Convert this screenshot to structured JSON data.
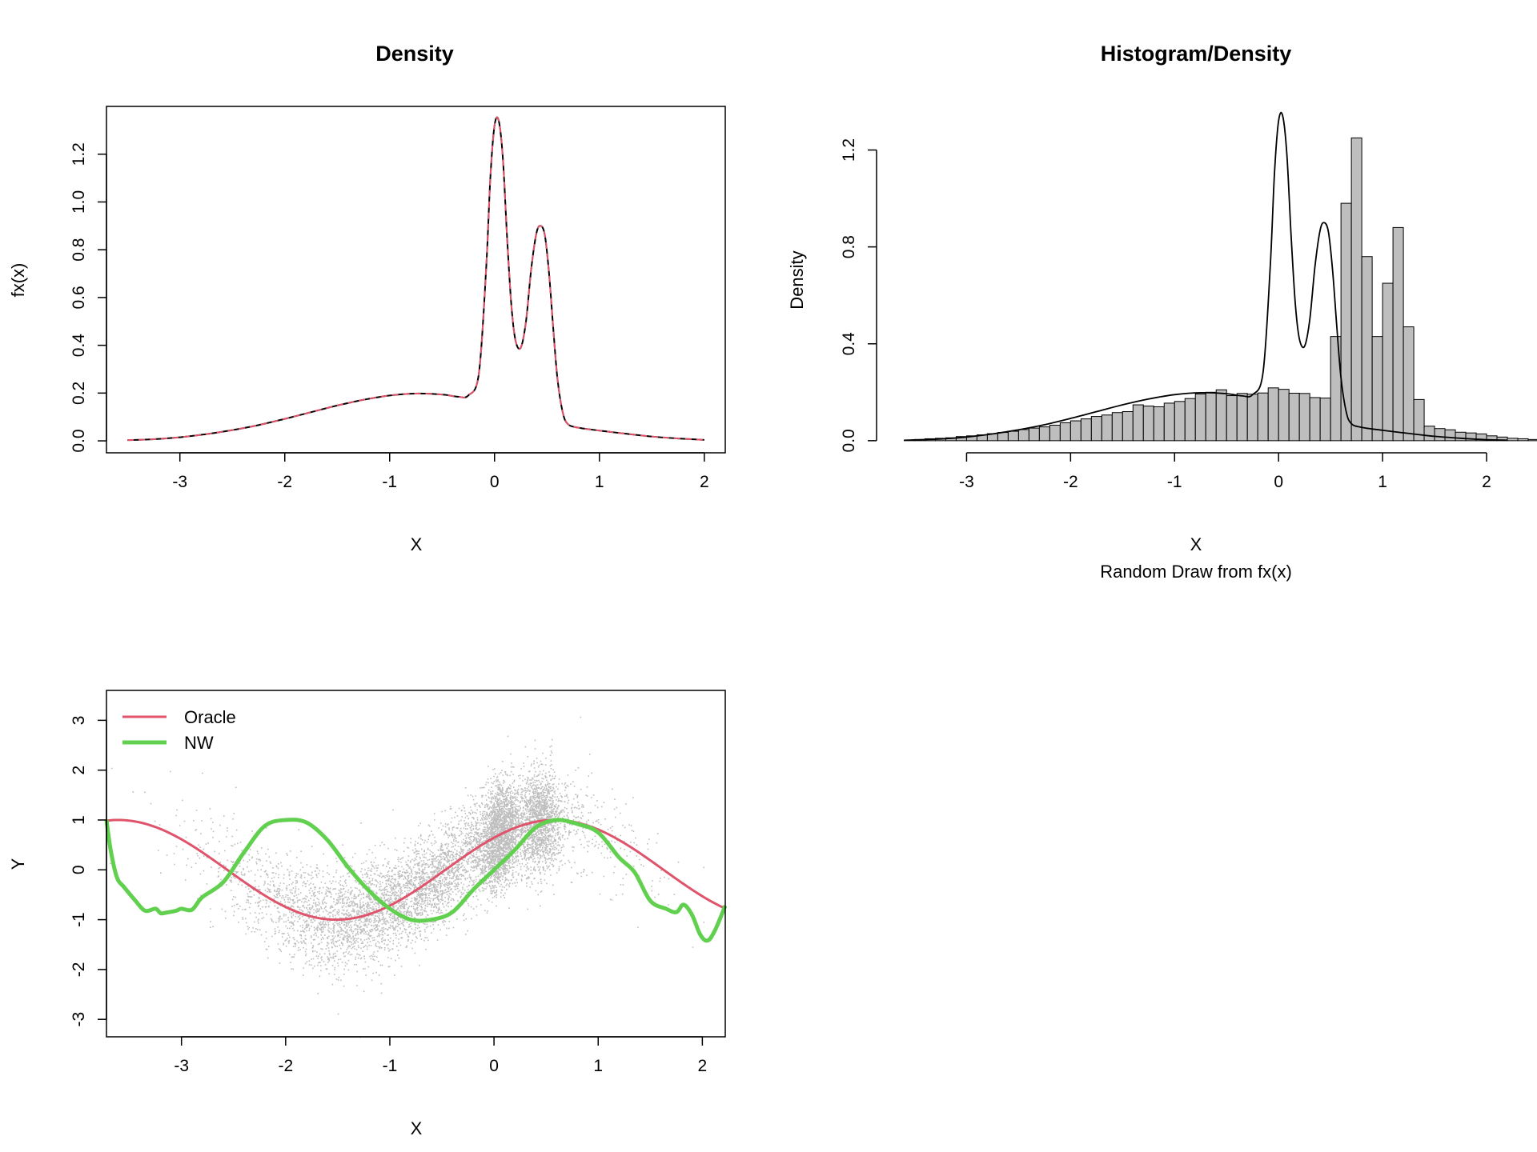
{
  "chart_data": [
    {
      "type": "line",
      "title": "Density",
      "xlabel": "X",
      "ylabel": "fx(x)",
      "xlim": [
        -3.7,
        2.2
      ],
      "ylim": [
        -0.05,
        1.4
      ],
      "xticks": [
        "-3",
        "-2",
        "-1",
        "0",
        "1",
        "2"
      ],
      "yticks": [
        "0.0",
        "0.2",
        "0.4",
        "0.6",
        "0.8",
        "1.0",
        "1.2"
      ],
      "x": [
        -3.5,
        -3.25,
        -3.0,
        -2.75,
        -2.5,
        -2.25,
        -2.0,
        -1.75,
        -1.5,
        -1.25,
        -1.0,
        -0.75,
        -0.5,
        -0.35,
        -0.25,
        -0.15,
        -0.08,
        -0.04,
        0.0,
        0.04,
        0.08,
        0.12,
        0.16,
        0.2,
        0.25,
        0.3,
        0.35,
        0.4,
        0.44,
        0.48,
        0.52,
        0.56,
        0.6,
        0.65,
        0.7,
        0.8,
        1.0,
        1.25,
        1.5,
        1.75,
        2.0
      ],
      "series": [
        {
          "color": "#000000",
          "dash": "solid",
          "values": [
            0.003,
            0.007,
            0.015,
            0.028,
            0.045,
            0.066,
            0.092,
            0.12,
            0.148,
            0.172,
            0.19,
            0.198,
            0.194,
            0.185,
            0.19,
            0.28,
            0.72,
            1.1,
            1.32,
            1.34,
            1.18,
            0.85,
            0.57,
            0.42,
            0.39,
            0.5,
            0.72,
            0.87,
            0.9,
            0.86,
            0.7,
            0.47,
            0.26,
            0.12,
            0.07,
            0.055,
            0.043,
            0.03,
            0.018,
            0.01,
            0.004
          ]
        },
        {
          "color": "#df536b",
          "dash": "dashed",
          "values": [
            0.003,
            0.007,
            0.015,
            0.028,
            0.045,
            0.066,
            0.092,
            0.12,
            0.148,
            0.172,
            0.19,
            0.198,
            0.194,
            0.185,
            0.19,
            0.28,
            0.72,
            1.1,
            1.32,
            1.34,
            1.18,
            0.85,
            0.57,
            0.42,
            0.39,
            0.5,
            0.72,
            0.87,
            0.9,
            0.86,
            0.7,
            0.47,
            0.26,
            0.12,
            0.07,
            0.055,
            0.043,
            0.03,
            0.018,
            0.01,
            0.004
          ]
        }
      ]
    },
    {
      "type": "bar",
      "title": "Histogram/Density",
      "xlabel": "X",
      "subtitle": "Random Draw from fx(x)",
      "ylabel": "Density",
      "xlim": [
        -3.75,
        2.2
      ],
      "ylim": [
        -0.05,
        1.38
      ],
      "xticks": [
        "-3",
        "-2",
        "-1",
        "0",
        "1",
        "2"
      ],
      "yticks": [
        "0.0",
        "0.4",
        "0.8",
        "1.2"
      ],
      "bin_start": -3.6,
      "bin_width": 0.1,
      "values": [
        0.002,
        0.005,
        0.008,
        0.01,
        0.012,
        0.017,
        0.02,
        0.024,
        0.029,
        0.034,
        0.039,
        0.046,
        0.052,
        0.057,
        0.064,
        0.074,
        0.082,
        0.09,
        0.1,
        0.106,
        0.116,
        0.12,
        0.148,
        0.143,
        0.14,
        0.155,
        0.162,
        0.174,
        0.193,
        0.2,
        0.21,
        0.186,
        0.195,
        0.192,
        0.197,
        0.218,
        0.212,
        0.196,
        0.195,
        0.178,
        0.176,
        0.43,
        0.98,
        1.25,
        0.76,
        0.43,
        0.65,
        0.88,
        0.47,
        0.17,
        0.06,
        0.05,
        0.045,
        0.035,
        0.032,
        0.028,
        0.02,
        0.015,
        0.01,
        0.008,
        0.005,
        0.003,
        0.003,
        0.002,
        0.001,
        0.001,
        0.001,
        0.001
      ],
      "density_x": [
        -3.6,
        -3.25,
        -3.0,
        -2.75,
        -2.5,
        -2.25,
        -2.0,
        -1.75,
        -1.5,
        -1.25,
        -1.0,
        -0.75,
        -0.5,
        -0.35,
        -0.25,
        -0.15,
        -0.08,
        -0.04,
        0.0,
        0.04,
        0.08,
        0.12,
        0.16,
        0.2,
        0.25,
        0.3,
        0.35,
        0.4,
        0.44,
        0.48,
        0.52,
        0.56,
        0.6,
        0.65,
        0.7,
        0.8,
        1.0,
        1.25,
        1.5,
        1.75,
        2.0,
        2.2
      ],
      "density_y": [
        0.002,
        0.007,
        0.015,
        0.028,
        0.045,
        0.066,
        0.092,
        0.12,
        0.148,
        0.172,
        0.19,
        0.198,
        0.194,
        0.185,
        0.19,
        0.28,
        0.72,
        1.1,
        1.32,
        1.34,
        1.18,
        0.85,
        0.57,
        0.42,
        0.39,
        0.5,
        0.72,
        0.87,
        0.9,
        0.86,
        0.7,
        0.47,
        0.26,
        0.12,
        0.07,
        0.055,
        0.043,
        0.03,
        0.018,
        0.01,
        0.004,
        0.002
      ]
    },
    {
      "type": "scatter",
      "xlabel": "X",
      "ylabel": "Y",
      "xlim": [
        -3.72,
        2.22
      ],
      "ylim": [
        -3.35,
        3.6
      ],
      "xticks": [
        "-3",
        "-2",
        "-1",
        "0",
        "1",
        "2"
      ],
      "yticks": [
        "-3",
        "-2",
        "-1",
        "0",
        "1",
        "2",
        "3"
      ],
      "legend": {
        "position": "top-left",
        "entries": [
          "Oracle",
          "NW"
        ]
      },
      "series": [
        {
          "name": "Oracle",
          "color": "#df536b",
          "function": "sin(1.5x + 0.7)"
        },
        {
          "name": "NW",
          "color": "#61d04f",
          "x": [
            -3.72,
            -3.68,
            -3.62,
            -3.55,
            -3.45,
            -3.35,
            -3.25,
            -3.2,
            -3.15,
            -3.05,
            -3.0,
            -2.9,
            -2.8,
            -2.6,
            -2.4,
            -2.2,
            -2.0,
            -1.8,
            -1.6,
            -1.4,
            -1.2,
            -1.0,
            -0.8,
            -0.6,
            -0.4,
            -0.2,
            0.0,
            0.2,
            0.4,
            0.6,
            0.8,
            1.0,
            1.2,
            1.35,
            1.5,
            1.65,
            1.75,
            1.82,
            1.9,
            1.98,
            2.05,
            2.12,
            2.22
          ],
          "values": [
            1.0,
            0.4,
            -0.15,
            -0.35,
            -0.6,
            -0.82,
            -0.78,
            -0.87,
            -0.86,
            -0.82,
            -0.78,
            -0.8,
            -0.55,
            -0.25,
            0.35,
            0.88,
            1.0,
            0.95,
            0.6,
            0.05,
            -0.42,
            -0.78,
            -1.0,
            -1.0,
            -0.85,
            -0.4,
            0.0,
            0.4,
            0.85,
            1.0,
            0.92,
            0.75,
            0.25,
            -0.05,
            -0.62,
            -0.78,
            -0.85,
            -0.7,
            -0.9,
            -1.3,
            -1.42,
            -1.22,
            -0.72
          ]
        },
        {
          "name": "",
          "color": "#bebebe",
          "type": "points",
          "note_density": "mixture of Normal(-0.8, 0.85) and tight peaks at 0.05 and 0.43",
          "noise_sd": 0.5,
          "count": 9000
        }
      ]
    }
  ]
}
